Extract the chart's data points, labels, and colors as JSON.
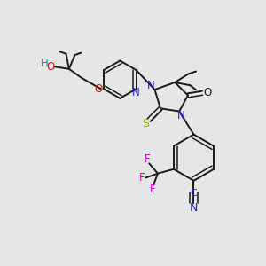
{
  "bg": "#e6e6e6",
  "figsize": [
    3.0,
    3.0
  ],
  "dpi": 100,
  "lw": 1.4,
  "lw_inner": 1.1,
  "fs": 8.5,
  "colors": {
    "bond": "#1a1a1a",
    "N": "#2222cc",
    "O": "#cc2200",
    "S": "#aaaa00",
    "F": "#cc00cc",
    "H": "#228888",
    "C": "#1a1a1a"
  }
}
